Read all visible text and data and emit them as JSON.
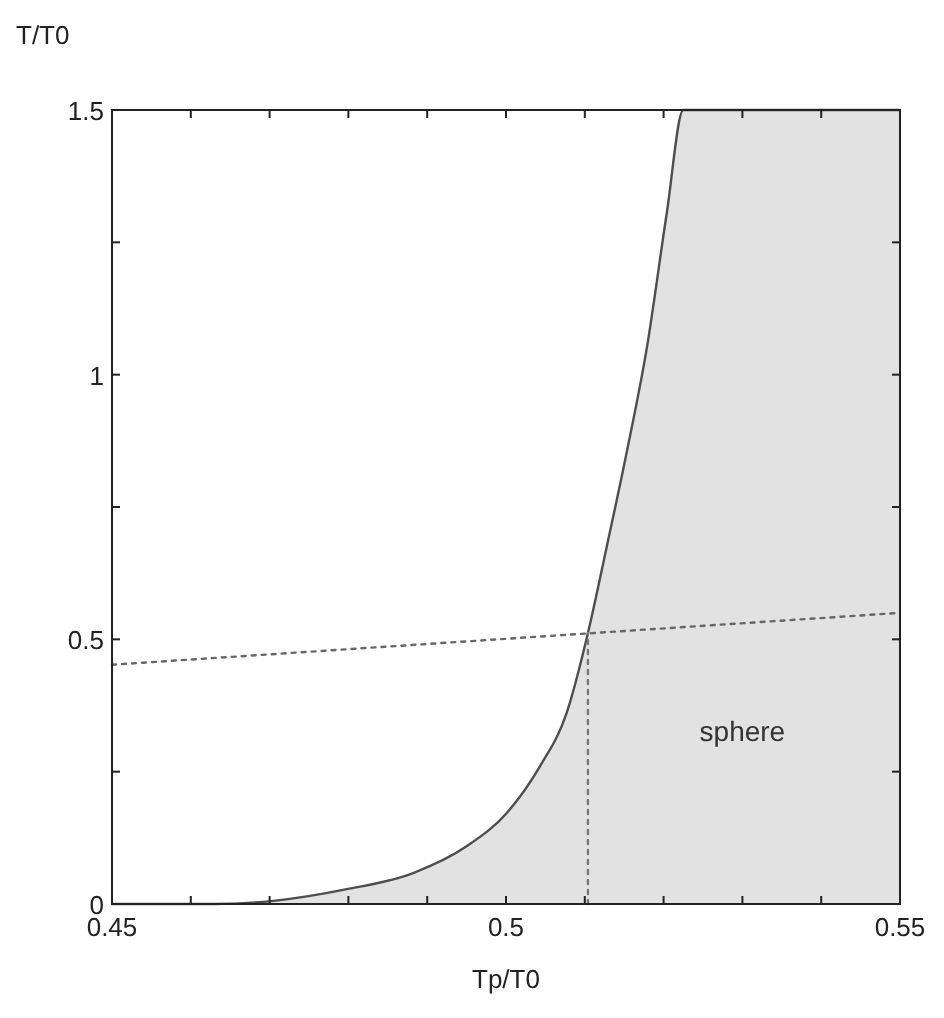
{
  "chart_data": {
    "type": "line",
    "xlabel": "Tp/T0",
    "ylabel": "T/T0",
    "xlim": [
      0.45,
      0.55
    ],
    "ylim": [
      0,
      1.5
    ],
    "xticks": [
      0.45,
      {
        "value": 0.46,
        "label": null
      },
      {
        "value": 0.47,
        "label": null
      },
      {
        "value": 0.48,
        "label": null
      },
      {
        "value": 0.49,
        "label": null
      },
      0.5,
      {
        "value": 0.51,
        "label": null
      },
      {
        "value": 0.52,
        "label": null
      },
      {
        "value": 0.53,
        "label": null
      },
      {
        "value": 0.54,
        "label": null
      },
      0.55
    ],
    "yticks": [
      0,
      {
        "value": 0.25,
        "label": null
      },
      0.5,
      {
        "value": 0.75,
        "label": null
      },
      1,
      {
        "value": 1.25,
        "label": null
      },
      1.5
    ],
    "grid": false,
    "series": [
      {
        "type": "area",
        "color": "#e2e2e2",
        "line_style": "solid",
        "x": [
          0.45,
          0.463,
          0.4705,
          0.4798,
          0.4883,
          0.495,
          0.5001,
          0.5043,
          0.5077,
          0.5104,
          0.5128,
          0.5153,
          0.5179,
          0.5204,
          0.5225,
          0.55
        ],
        "values": [
          0,
          0,
          0.006,
          0.028,
          0.059,
          0.109,
          0.172,
          0.26,
          0.361,
          0.512,
          0.676,
          0.852,
          1.053,
          1.305,
          1.5,
          1.5
        ]
      },
      {
        "type": "line",
        "color": "#666666",
        "line_style": "dotted",
        "x": [
          0.45,
          0.55
        ],
        "values": [
          0.452,
          0.55
        ]
      },
      {
        "type": "line",
        "color": "#777777",
        "line_style": "dotted",
        "x": [
          0.5104,
          0.5104
        ],
        "values": [
          0,
          0.512
        ]
      }
    ],
    "annotations": [
      "sphere"
    ]
  }
}
